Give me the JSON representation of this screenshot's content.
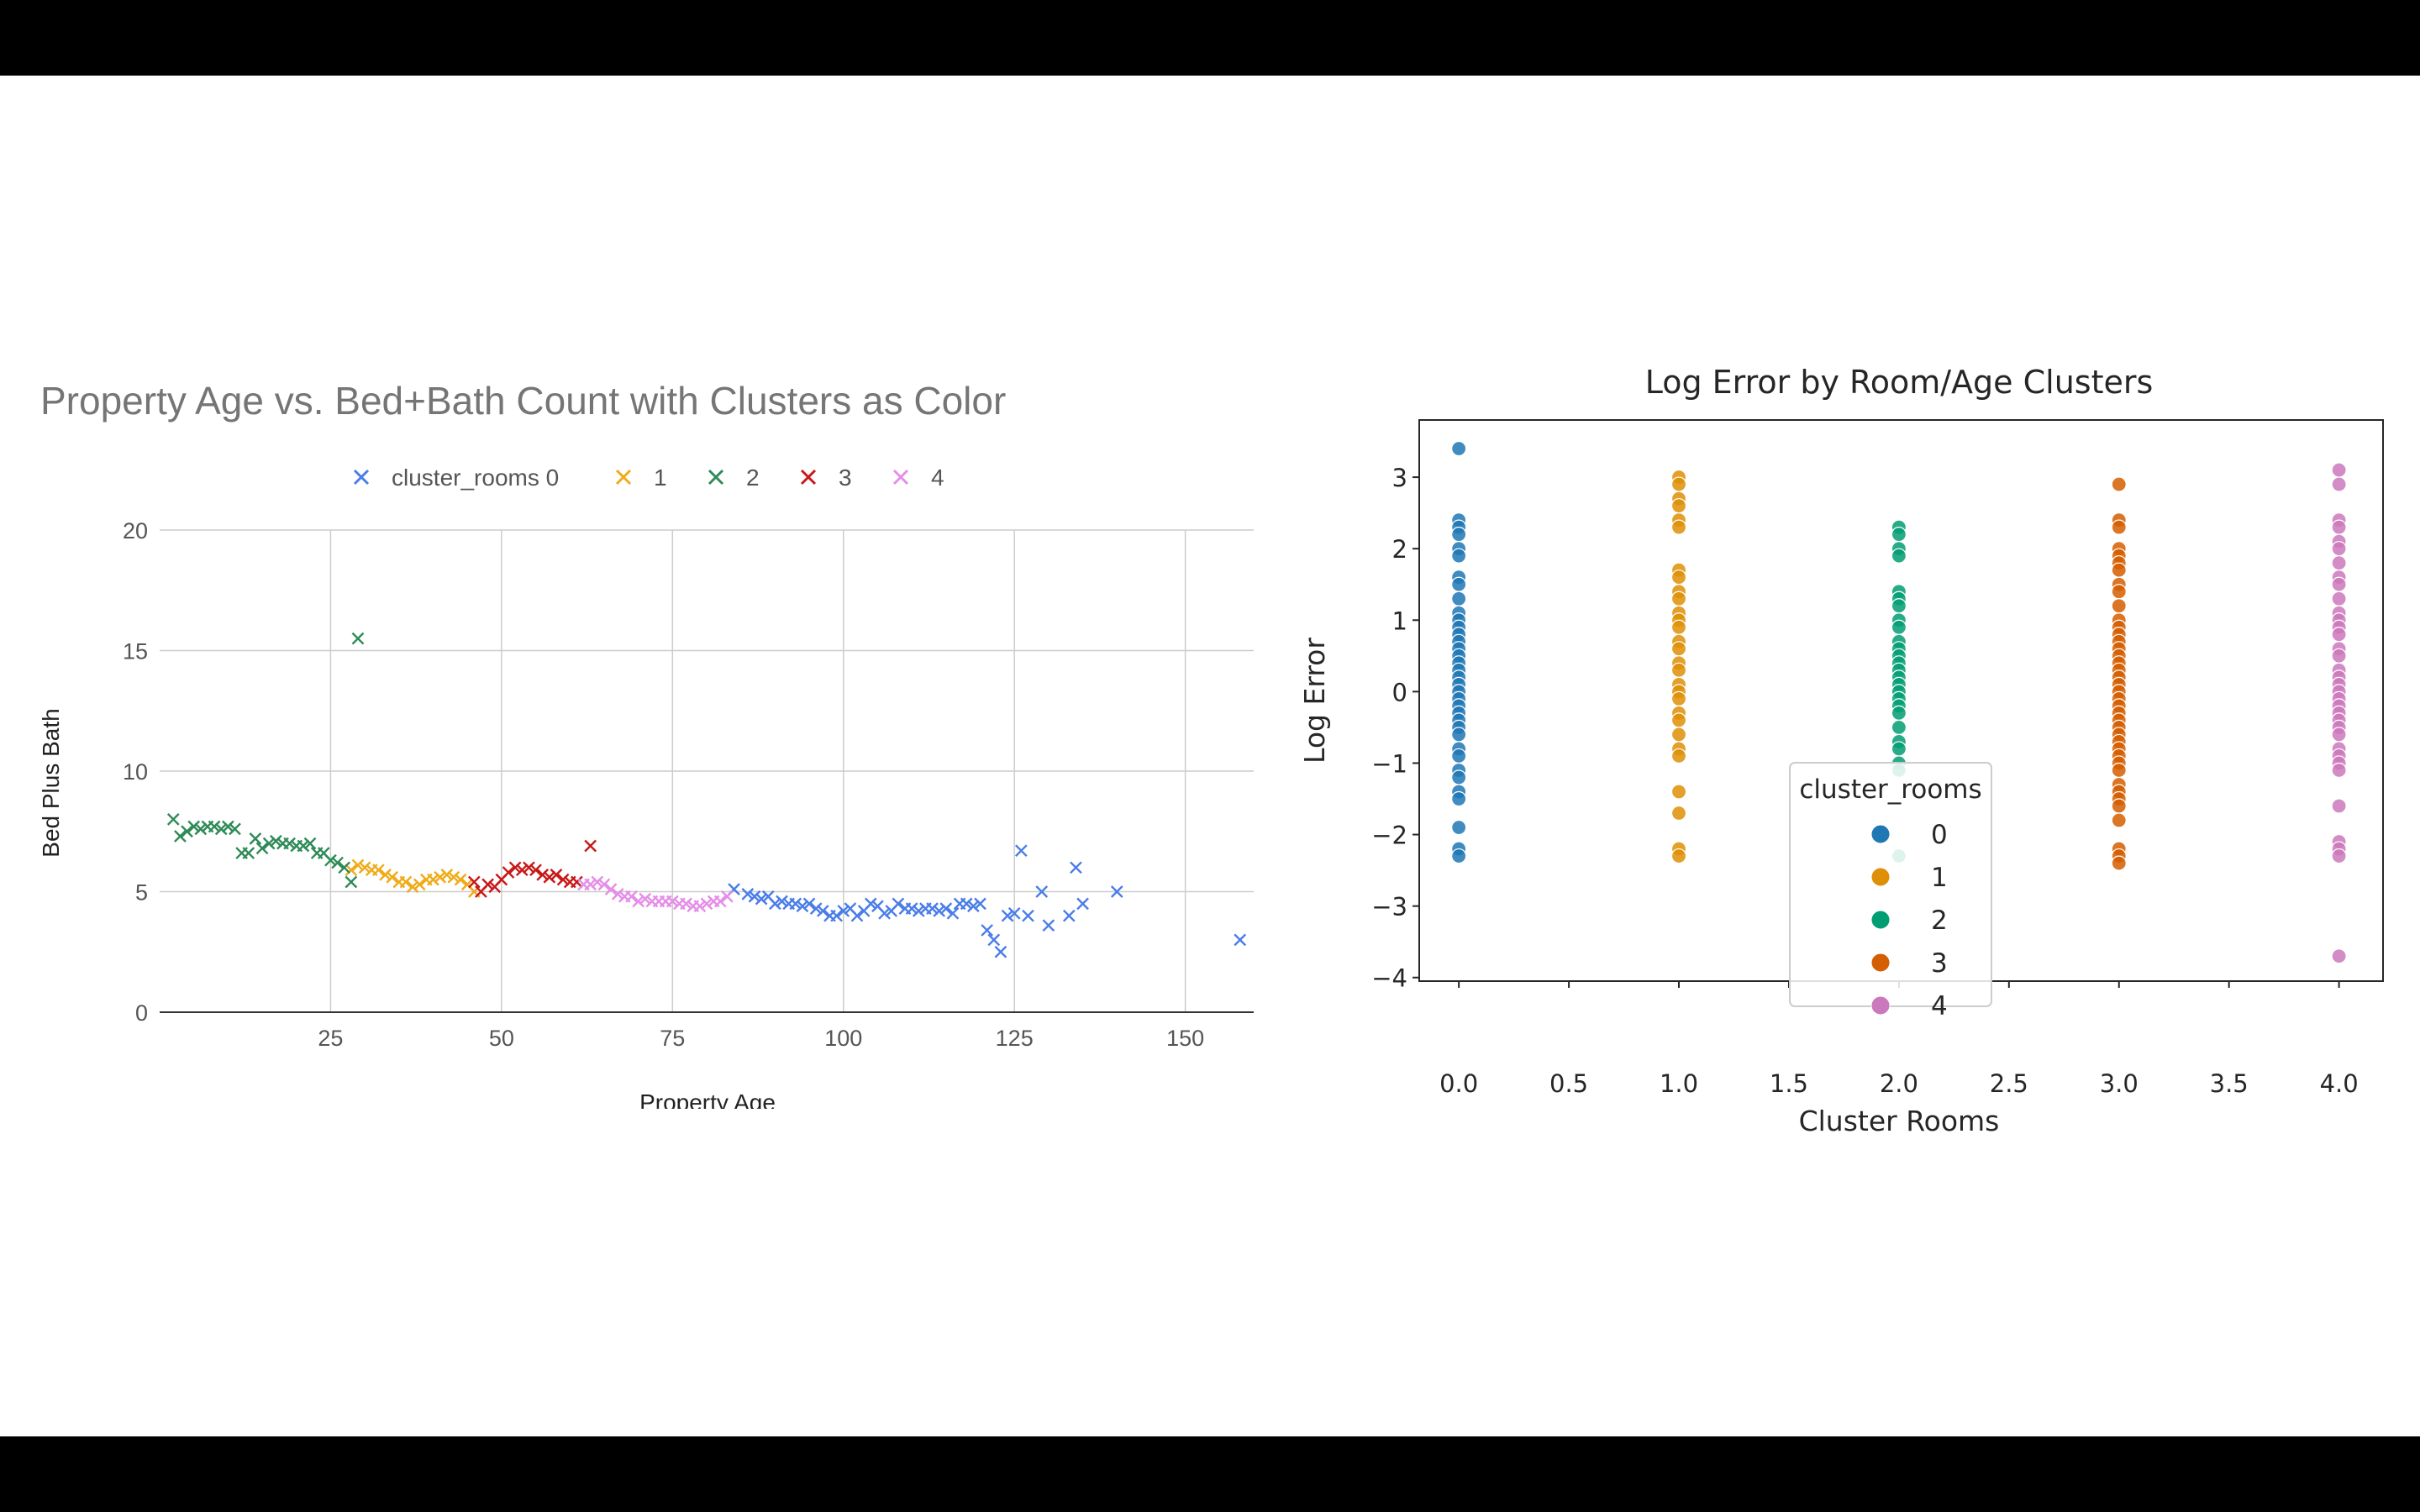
{
  "chart_data": [
    {
      "type": "scatter",
      "title": "Property Age vs. Bed+Bath Count with Clusters as Color",
      "xlabel": "Property Age",
      "ylabel": "Bed Plus Bath",
      "xlim": [
        0,
        160
      ],
      "ylim": [
        0,
        20
      ],
      "xticks": [
        25,
        50,
        75,
        100,
        125,
        150
      ],
      "yticks": [
        0,
        5,
        10,
        15,
        20
      ],
      "grid": true,
      "legend_position": "top",
      "marker": "x",
      "series": [
        {
          "name": "cluster_rooms 0",
          "color": "#4a7de8",
          "x": [
            84,
            86,
            87,
            88,
            89,
            90,
            91,
            92,
            93,
            94,
            95,
            96,
            97,
            98,
            99,
            100,
            101,
            102,
            103,
            104,
            105,
            106,
            107,
            108,
            109,
            110,
            111,
            112,
            113,
            114,
            115,
            116,
            117,
            118,
            119,
            120,
            121,
            122,
            123,
            124,
            125,
            126,
            127,
            129,
            130,
            133,
            134,
            135,
            140,
            158
          ],
          "y": [
            5.1,
            4.9,
            4.8,
            4.7,
            4.8,
            4.5,
            4.6,
            4.5,
            4.5,
            4.4,
            4.5,
            4.3,
            4.2,
            4.0,
            4.0,
            4.2,
            4.3,
            4.0,
            4.2,
            4.5,
            4.4,
            4.1,
            4.2,
            4.5,
            4.3,
            4.3,
            4.2,
            4.3,
            4.3,
            4.2,
            4.3,
            4.1,
            4.5,
            4.5,
            4.4,
            4.5,
            3.4,
            3.0,
            2.5,
            4.0,
            4.1,
            6.7,
            4.0,
            5.0,
            3.6,
            4.0,
            6.0,
            4.5,
            5.0,
            3.0
          ]
        },
        {
          "name": "1",
          "color": "#f0ab18",
          "x": [
            28,
            29,
            30,
            31,
            32,
            33,
            34,
            35,
            36,
            37,
            38,
            39,
            40,
            41,
            42,
            43,
            44,
            45,
            46
          ],
          "y": [
            5.9,
            6.1,
            6.0,
            5.9,
            5.9,
            5.7,
            5.6,
            5.4,
            5.4,
            5.2,
            5.3,
            5.5,
            5.5,
            5.6,
            5.7,
            5.6,
            5.5,
            5.3,
            5.0
          ]
        },
        {
          "name": "2",
          "color": "#2e8b57",
          "x": [
            2,
            3,
            4,
            5,
            6,
            7,
            8,
            9,
            10,
            11,
            12,
            13,
            14,
            15,
            16,
            17,
            18,
            19,
            20,
            21,
            22,
            23,
            24,
            25,
            26,
            27,
            28,
            29
          ],
          "y": [
            8.0,
            7.3,
            7.5,
            7.7,
            7.6,
            7.7,
            7.7,
            7.6,
            7.7,
            7.6,
            6.6,
            6.6,
            7.2,
            6.8,
            7.0,
            7.1,
            7.0,
            7.0,
            6.9,
            6.9,
            7.0,
            6.6,
            6.6,
            6.3,
            6.2,
            6.0,
            5.4,
            15.5
          ]
        },
        {
          "name": "3",
          "color": "#c81818",
          "x": [
            46,
            47,
            48,
            49,
            50,
            51,
            52,
            53,
            54,
            55,
            56,
            57,
            58,
            59,
            60,
            61,
            63
          ],
          "y": [
            5.4,
            5.0,
            5.3,
            5.2,
            5.5,
            5.8,
            6.0,
            5.9,
            6.0,
            5.9,
            5.7,
            5.6,
            5.7,
            5.5,
            5.4,
            5.4,
            6.9
          ]
        },
        {
          "name": "4",
          "color": "#e58ee8",
          "x": [
            62,
            63,
            64,
            65,
            66,
            67,
            68,
            69,
            70,
            71,
            72,
            73,
            74,
            75,
            76,
            77,
            78,
            79,
            80,
            81,
            82,
            83
          ],
          "y": [
            5.3,
            5.3,
            5.4,
            5.3,
            5.1,
            4.9,
            4.8,
            4.8,
            4.6,
            4.7,
            4.6,
            4.6,
            4.6,
            4.6,
            4.5,
            4.5,
            4.4,
            4.4,
            4.5,
            4.6,
            4.6,
            4.8
          ]
        }
      ]
    },
    {
      "type": "scatter",
      "title": "Log Error by Room/Age Clusters",
      "xlabel": "Cluster Rooms",
      "ylabel": "Log Error",
      "xlim": [
        -0.18,
        4.2
      ],
      "ylim": [
        -4.05,
        3.8
      ],
      "xticks": [
        "0.0",
        "0.5",
        "1.0",
        "1.5",
        "2.0",
        "2.5",
        "3.0",
        "3.5",
        "4.0"
      ],
      "yticks": [
        "3",
        "2",
        "1",
        "0",
        "−1",
        "−2",
        "−3",
        "−4"
      ],
      "grid": false,
      "legend_title": "cluster_rooms",
      "legend_position": "lower-center",
      "series": [
        {
          "name": "0",
          "color": "#1f77b4",
          "x": 0.0,
          "y": [
            3.4,
            2.4,
            2.3,
            2.2,
            2.0,
            1.9,
            1.6,
            1.5,
            1.3,
            1.1,
            1.0,
            0.9,
            0.8,
            0.7,
            0.6,
            0.5,
            0.4,
            0.3,
            0.2,
            0.1,
            0.0,
            -0.1,
            -0.2,
            -0.3,
            -0.4,
            -0.5,
            -0.6,
            -0.8,
            -0.9,
            -1.1,
            -1.2,
            -1.4,
            -1.5,
            -1.9,
            -2.2,
            -2.3
          ]
        },
        {
          "name": "1",
          "color": "#de8f05",
          "x": 1.0,
          "y": [
            3.0,
            2.9,
            2.7,
            2.6,
            2.4,
            2.3,
            1.7,
            1.6,
            1.4,
            1.3,
            1.1,
            1.0,
            0.9,
            0.7,
            0.6,
            0.4,
            0.3,
            0.1,
            0.0,
            -0.1,
            -0.3,
            -0.4,
            -0.6,
            -0.8,
            -0.9,
            -1.4,
            -1.7,
            -2.2,
            -2.3
          ]
        },
        {
          "name": "2",
          "color": "#029e73",
          "x": 2.0,
          "y": [
            2.3,
            2.2,
            2.0,
            1.9,
            1.4,
            1.3,
            1.2,
            1.0,
            0.9,
            0.7,
            0.6,
            0.5,
            0.4,
            0.3,
            0.2,
            0.1,
            0.0,
            -0.1,
            -0.2,
            -0.3,
            -0.5,
            -0.7,
            -0.8,
            -1.0,
            -1.1,
            -2.3
          ]
        },
        {
          "name": "3",
          "color": "#d55e00",
          "x": 3.0,
          "y": [
            2.9,
            2.4,
            2.3,
            2.0,
            1.9,
            1.8,
            1.7,
            1.5,
            1.4,
            1.2,
            1.0,
            0.9,
            0.8,
            0.7,
            0.6,
            0.5,
            0.4,
            0.3,
            0.2,
            0.1,
            0.0,
            -0.1,
            -0.2,
            -0.3,
            -0.4,
            -0.5,
            -0.6,
            -0.7,
            -0.8,
            -0.9,
            -1.0,
            -1.1,
            -1.3,
            -1.4,
            -1.5,
            -1.6,
            -1.8,
            -2.2,
            -2.3,
            -2.4
          ]
        },
        {
          "name": "4",
          "color": "#cc78bc",
          "x": 4.0,
          "y": [
            3.1,
            2.9,
            2.4,
            2.3,
            2.1,
            2.0,
            1.8,
            1.6,
            1.5,
            1.3,
            1.1,
            1.0,
            0.9,
            0.8,
            0.6,
            0.5,
            0.3,
            0.2,
            0.1,
            0.0,
            -0.1,
            -0.2,
            -0.3,
            -0.4,
            -0.5,
            -0.6,
            -0.8,
            -0.9,
            -1.0,
            -1.1,
            -1.6,
            -2.1,
            -2.2,
            -2.3,
            -3.7
          ]
        }
      ]
    }
  ]
}
